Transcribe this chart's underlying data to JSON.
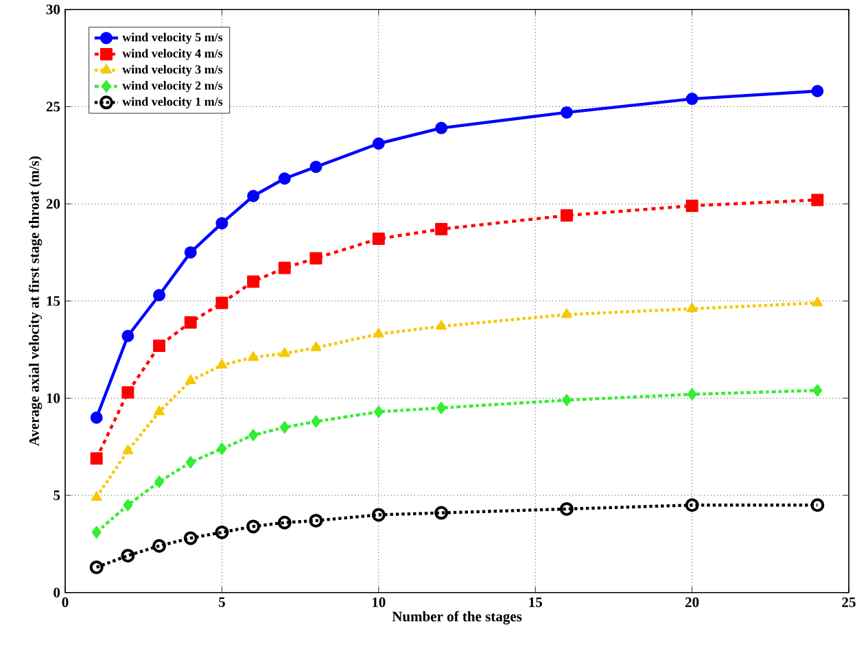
{
  "chart_data": {
    "type": "line",
    "xlabel": "Number of the stages",
    "ylabel": "Average axial velocity at first stage throat (m/s)",
    "x": [
      1,
      2,
      3,
      4,
      5,
      6,
      7,
      8,
      10,
      12,
      16,
      20,
      24
    ],
    "series": [
      {
        "name": "wind velocity 5 m/s",
        "color": "#0000ff",
        "marker": "circle",
        "line_style": "solid",
        "values": [
          9.0,
          13.2,
          15.3,
          17.5,
          19.0,
          20.4,
          21.3,
          21.9,
          23.1,
          23.9,
          24.7,
          25.4,
          25.8
        ]
      },
      {
        "name": "wind velocity 4 m/s",
        "color": "#ff0000",
        "marker": "square",
        "line_style": "dashed",
        "values": [
          6.9,
          10.3,
          12.7,
          13.9,
          14.9,
          16.0,
          16.7,
          17.2,
          18.2,
          18.7,
          19.4,
          19.9,
          20.2
        ]
      },
      {
        "name": "wind velocity 3 m/s",
        "color": "#f5c800",
        "marker": "triangle",
        "line_style": "dotted",
        "values": [
          4.9,
          7.3,
          9.3,
          10.9,
          11.7,
          12.1,
          12.3,
          12.6,
          13.3,
          13.7,
          14.3,
          14.6,
          14.9
        ]
      },
      {
        "name": "wind velocity 2 m/s",
        "color": "#33ee33",
        "marker": "diamond",
        "line_style": "dashdot",
        "values": [
          3.1,
          4.5,
          5.7,
          6.7,
          7.4,
          8.1,
          8.5,
          8.8,
          9.3,
          9.5,
          9.9,
          10.2,
          10.4
        ]
      },
      {
        "name": "wind velocity 1 m/s",
        "color": "#000000",
        "marker": "circle",
        "line_style": "dotted",
        "values": [
          1.3,
          1.9,
          2.4,
          2.8,
          3.1,
          3.4,
          3.6,
          3.7,
          4.0,
          4.1,
          4.3,
          4.5,
          4.5
        ]
      }
    ],
    "xlim": [
      0,
      25
    ],
    "ylim": [
      0,
      30
    ],
    "xticks": [
      0,
      5,
      10,
      15,
      20,
      25
    ],
    "yticks": [
      0,
      5,
      10,
      15,
      20,
      25,
      30
    ],
    "grid": true,
    "legend": "top left"
  }
}
